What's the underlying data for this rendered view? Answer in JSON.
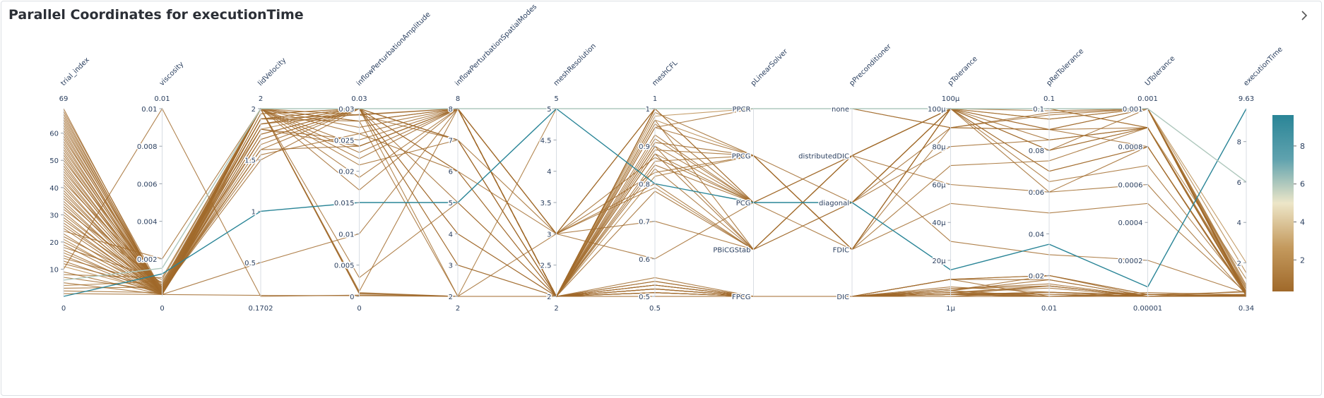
{
  "card": {
    "title": "Parallel Coordinates for executionTime"
  },
  "icons": {
    "expand": "chevron-right-icon"
  },
  "chart_data": {
    "type": "parallel_coordinates",
    "title": "Parallel Coordinates for executionTime",
    "color_by": "executionTime",
    "colorscale": [
      "#a0692a",
      "#c49a5e",
      "#ede6c8",
      "#5fa2ae",
      "#2a8597"
    ],
    "colorbar": {
      "range": [
        0.34,
        9.63
      ],
      "ticks": [
        2,
        4,
        6,
        8
      ]
    },
    "dimensions": [
      {
        "name": "trial_index",
        "type": "numeric",
        "range": [
          0,
          69
        ],
        "top_label": "69",
        "bottom_label": "0",
        "ticks": [
          10,
          20,
          30,
          40,
          50,
          60
        ],
        "tick_labels": [
          "10",
          "20",
          "30",
          "40",
          "50",
          "60"
        ]
      },
      {
        "name": "viscosity",
        "type": "numeric",
        "range": [
          0,
          0.01
        ],
        "top_label": "0.01",
        "bottom_label": "0",
        "ticks": [
          0.002,
          0.004,
          0.006,
          0.008,
          0.01
        ],
        "tick_labels": [
          "0.002",
          "0.004",
          "0.006",
          "0.008",
          "0.01"
        ]
      },
      {
        "name": "lidVelocity",
        "type": "numeric",
        "range": [
          0.1702,
          2
        ],
        "top_label": "2",
        "bottom_label": "0.1702",
        "ticks": [
          0.5,
          1,
          1.5,
          2
        ],
        "tick_labels": [
          "0.5",
          "1",
          "1.5",
          "2"
        ]
      },
      {
        "name": "inflowPerturbationAmplitude",
        "type": "numeric",
        "range": [
          0,
          0.03
        ],
        "top_label": "0.03",
        "bottom_label": "0",
        "ticks": [
          0,
          0.005,
          0.01,
          0.015,
          0.02,
          0.025,
          0.03
        ],
        "tick_labels": [
          "0",
          "0.005",
          "0.01",
          "0.015",
          "0.02",
          "0.025",
          "0.03"
        ]
      },
      {
        "name": "inflowPerturbationSpatialModes",
        "type": "numeric",
        "range": [
          2,
          8
        ],
        "top_label": "8",
        "bottom_label": "2",
        "ticks": [
          2,
          3,
          4,
          5,
          6,
          7,
          8
        ],
        "tick_labels": [
          "2",
          "3",
          "4",
          "5",
          "6",
          "7",
          "8"
        ]
      },
      {
        "name": "meshResolution",
        "type": "numeric",
        "range": [
          2,
          5
        ],
        "top_label": "5",
        "bottom_label": "2",
        "ticks": [
          2,
          2.5,
          3,
          3.5,
          4,
          4.5,
          5
        ],
        "tick_labels": [
          "2",
          "2.5",
          "3",
          "3.5",
          "4",
          "4.5",
          "5"
        ]
      },
      {
        "name": "meshCFL",
        "type": "numeric",
        "range": [
          0.5,
          1
        ],
        "top_label": "1",
        "bottom_label": "0.5",
        "ticks": [
          0.5,
          0.6,
          0.7,
          0.8,
          0.9,
          1
        ],
        "tick_labels": [
          "0.5",
          "0.6",
          "0.7",
          "0.8",
          "0.9",
          "1"
        ]
      },
      {
        "name": "pLinearSolver",
        "type": "categorical",
        "categories": [
          "FPCG",
          "PBiCGStab",
          "PCG",
          "PPCG",
          "PPCR"
        ]
      },
      {
        "name": "pPreconditioner",
        "type": "categorical",
        "categories": [
          "DIC",
          "FDIC",
          "diagonal",
          "distributedDIC",
          "none"
        ]
      },
      {
        "name": "pTolerance",
        "type": "numeric",
        "range": [
          1e-06,
          0.0001
        ],
        "top_label": "100μ",
        "bottom_label": "1μ",
        "ticks": [
          2e-05,
          4e-05,
          6e-05,
          8e-05,
          0.0001
        ],
        "tick_labels": [
          "20μ",
          "40μ",
          "60μ",
          "80μ",
          "100μ"
        ]
      },
      {
        "name": "pRelTolerance",
        "type": "numeric",
        "range": [
          0.01,
          0.1
        ],
        "top_label": "0.1",
        "bottom_label": "0.01",
        "ticks": [
          0.02,
          0.04,
          0.06,
          0.08,
          0.1
        ],
        "tick_labels": [
          "0.02",
          "0.04",
          "0.06",
          "0.08",
          "0.1"
        ]
      },
      {
        "name": "UTolerance",
        "type": "numeric",
        "range": [
          1e-05,
          0.001
        ],
        "top_label": "0.001",
        "bottom_label": "0.00001",
        "ticks": [
          0.0002,
          0.0004,
          0.0006,
          0.0008,
          0.001
        ],
        "tick_labels": [
          "0.0002",
          "0.0004",
          "0.0006",
          "0.0008",
          "0.001"
        ]
      },
      {
        "name": "executionTime",
        "type": "numeric",
        "range": [
          0.34,
          9.63
        ],
        "top_label": "9.63",
        "bottom_label": "0.34",
        "ticks": [
          2,
          4,
          6,
          8
        ],
        "tick_labels": [
          "2",
          "4",
          "6",
          "8"
        ]
      }
    ],
    "highlighted_trials": [
      [
        0,
        0.0012,
        1,
        0.015,
        5,
        5,
        0.8,
        "PCG",
        "diagonal",
        1.5e-05,
        0.035,
        6e-05,
        9.63
      ],
      [
        6,
        0.0015,
        2,
        0.03,
        8,
        5,
        1,
        "PPCR",
        "none",
        0.0001,
        0.1,
        0.001,
        6.0
      ]
    ],
    "trials": [
      [
        1,
        0.0001,
        2,
        0.03,
        8,
        2,
        0.51,
        "FPCG",
        "DIC",
        2e-06,
        0.012,
        2e-05,
        0.4
      ],
      [
        2,
        0.0002,
        1.9,
        0.028,
        2,
        2,
        0.95,
        "PPCR",
        "none",
        0.0001,
        0.099,
        0.001,
        0.5
      ],
      [
        3,
        0.0005,
        2,
        0.0008,
        8,
        3,
        1,
        "PCG",
        "distributedDIC",
        6e-05,
        0.06,
        0.0008,
        0.45
      ],
      [
        4,
        0.0008,
        1.8,
        0.03,
        8,
        2,
        0.82,
        "PPCG",
        "FDIC",
        0.0001,
        0.1,
        0.0009,
        1.2
      ],
      [
        5,
        0.0001,
        2,
        0.029,
        7,
        2,
        0.5,
        "FPCG",
        "DIC",
        1e-05,
        0.02,
        1e-05,
        0.6
      ],
      [
        7,
        0.0003,
        1.6,
        0.024,
        8,
        2,
        0.88,
        "PBiCGStab",
        "diagonal",
        9e-05,
        0.09,
        0.001,
        0.35
      ],
      [
        8,
        0.001,
        2,
        0.03,
        2,
        5,
        1,
        "PPCR",
        "none",
        0.0001,
        0.1,
        0.001,
        0.8
      ],
      [
        9,
        0.0001,
        2,
        0.03,
        8,
        2,
        0.5,
        "FPCG",
        "DIC",
        4e-06,
        0.01,
        1e-05,
        0.38
      ],
      [
        10,
        0.01,
        0.17,
        0.0002,
        2,
        3,
        0.6,
        "PCG",
        "distributedDIC",
        3e-05,
        0.03,
        0.0002,
        0.5
      ],
      [
        11,
        0.0002,
        1.95,
        0.03,
        8,
        2,
        0.98,
        "PPCR",
        "none",
        0.0001,
        0.095,
        0.001,
        2.0
      ],
      [
        12,
        0.0004,
        2,
        0.021,
        7,
        2,
        0.55,
        "FPCG",
        "DIC",
        1e-06,
        0.01,
        3e-05,
        0.42
      ],
      [
        13,
        0.0001,
        1.7,
        0.03,
        8,
        2,
        0.91,
        "PPCG",
        "diagonal",
        0.0001,
        0.08,
        0.001,
        0.36
      ],
      [
        14,
        0.0006,
        2,
        0.03,
        3,
        2,
        1,
        "PCG",
        "FDIC",
        5e-05,
        0.05,
        0.0005,
        0.5
      ],
      [
        15,
        0.0001,
        0.5,
        0.01,
        8,
        2,
        0.52,
        "FPCG",
        "DIC",
        3e-06,
        0.011,
        1e-05,
        0.38
      ],
      [
        16,
        0.0002,
        2,
        0.03,
        8,
        3,
        0.79,
        "PBiCGStab",
        "distributedDIC",
        0.0001,
        0.1,
        0.0009,
        0.7
      ],
      [
        17,
        0.0001,
        1.85,
        0.0291,
        8,
        2,
        1,
        "PPCR",
        "none",
        9e-05,
        0.098,
        0.001,
        0.4
      ],
      [
        18,
        0.0009,
        2,
        0.003,
        5,
        2,
        0.5,
        "FPCG",
        "DIC",
        1e-05,
        0.02,
        2e-05,
        0.55
      ],
      [
        19,
        0.0001,
        2,
        0.03,
        8,
        2,
        0.85,
        "PCG",
        "diagonal",
        0.0001,
        0.07,
        0.0008,
        0.37
      ],
      [
        20,
        0.0003,
        1.55,
        0.026,
        6,
        2,
        0.53,
        "FPCG",
        "DIC",
        5e-06,
        0.015,
        1e-05,
        0.45
      ],
      [
        21,
        0.0001,
        2,
        0.03,
        8,
        2,
        0.97,
        "PPCG",
        "FDIC",
        0.0001,
        0.1,
        0.001,
        1.5
      ],
      [
        22,
        0.0005,
        2,
        0.0006,
        2,
        2,
        0.5,
        "FPCG",
        "DIC",
        2e-06,
        0.01,
        1e-05,
        0.39
      ],
      [
        23,
        0.0001,
        1.9,
        0.03,
        8,
        3,
        0.7,
        "PBiCGStab",
        "diagonal",
        8e-05,
        0.085,
        0.0009,
        0.5
      ],
      [
        24,
        0.002,
        2,
        0.019,
        8,
        2,
        1,
        "PPCR",
        "none",
        0.0001,
        0.1,
        0.001,
        0.44
      ],
      [
        25,
        0.0001,
        2,
        0.03,
        4,
        2,
        0.5,
        "FPCG",
        "DIC",
        1e-05,
        0.018,
        1e-05,
        0.36
      ],
      [
        26,
        0.0002,
        1.65,
        0.03,
        8,
        2,
        0.9,
        "PCG",
        "distributedDIC",
        0.0001,
        0.065,
        0.0007,
        0.6
      ],
      [
        27,
        0.0001,
        2,
        0.028,
        8,
        2,
        0.51,
        "FPCG",
        "DIC",
        1e-06,
        0.01,
        2e-05,
        0.37
      ],
      [
        28,
        0.0004,
        2,
        0.03,
        7,
        3,
        0.83,
        "PPCG",
        "FDIC",
        7e-05,
        0.075,
        0.0009,
        0.48
      ],
      [
        29,
        0.0001,
        0.18,
        0.0001,
        2,
        2,
        0.5,
        "FPCG",
        "DIC",
        2e-06,
        0.01,
        1e-05,
        0.35
      ],
      [
        30,
        0.0003,
        2,
        0.03,
        8,
        2,
        1,
        "PPCR",
        "none",
        0.0001,
        0.1,
        0.001,
        0.9
      ],
      [
        31,
        0.0001,
        1.8,
        0.024,
        8,
        2,
        0.54,
        "FPCG",
        "DIC",
        6e-06,
        0.012,
        1e-05,
        0.38
      ],
      [
        32,
        0.0007,
        2,
        0.03,
        3,
        2,
        0.92,
        "PCG",
        "diagonal",
        0.0001,
        0.09,
        0.0008,
        0.5
      ],
      [
        33,
        0.0001,
        2,
        0.017,
        8,
        2,
        0.5,
        "FPCG",
        "DIC",
        3e-06,
        0.015,
        1e-05,
        0.4
      ],
      [
        34,
        0.0002,
        1.75,
        0.03,
        8,
        2,
        0.78,
        "PBiCGStab",
        "distributedDIC",
        0.0001,
        0.1,
        0.001,
        0.37
      ],
      [
        35,
        0.0001,
        2,
        0.03,
        6,
        3,
        1,
        "PPCR",
        "none",
        9e-05,
        0.097,
        0.001,
        0.55
      ],
      [
        36,
        0.0005,
        2,
        0.0004,
        2,
        2,
        0.52,
        "FPCG",
        "DIC",
        1e-06,
        0.01,
        1e-05,
        0.36
      ],
      [
        37,
        0.0001,
        1.9,
        0.03,
        8,
        2,
        0.86,
        "PPCG",
        "FDIC",
        0.0001,
        0.08,
        0.0009,
        0.46
      ],
      [
        38,
        0.0002,
        2,
        0.022,
        8,
        2,
        0.5,
        "FPCG",
        "DIC",
        4e-06,
        0.02,
        2e-05,
        0.38
      ],
      [
        39,
        0.0001,
        2,
        0.03,
        8,
        2,
        0.96,
        "PCG",
        "diagonal",
        0.0001,
        0.06,
        0.0006,
        0.42
      ],
      [
        40,
        0.0003,
        1.5,
        0.03,
        5,
        2,
        0.53,
        "FPCG",
        "DIC",
        1e-05,
        0.01,
        1e-05,
        0.36
      ],
      [
        41,
        0.0001,
        2,
        0.03,
        8,
        3,
        0.8,
        "PBiCGStab",
        "distributedDIC",
        0.0001,
        0.1,
        0.001,
        0.7
      ],
      [
        42,
        0.0006,
        2,
        0.026,
        8,
        2,
        1,
        "PPCR",
        "none",
        0.0001,
        0.1,
        0.001,
        0.5
      ],
      [
        43,
        0.0001,
        1.85,
        0.03,
        7,
        2,
        0.51,
        "FPCG",
        "DIC",
        2e-06,
        0.012,
        1e-05,
        0.35
      ],
      [
        44,
        0.0002,
        2,
        0.03,
        8,
        2,
        0.89,
        "PPCG",
        "FDIC",
        9e-05,
        0.09,
        0.0009,
        0.6
      ],
      [
        45,
        0.0001,
        2,
        0.0005,
        2,
        2,
        0.5,
        "FPCG",
        "DIC",
        1e-06,
        0.01,
        1e-05,
        0.37
      ],
      [
        46,
        0.0004,
        1.7,
        0.03,
        8,
        2,
        0.93,
        "PCG",
        "diagonal",
        0.0001,
        0.07,
        0.0008,
        0.45
      ],
      [
        47,
        0.0001,
        2,
        0.023,
        8,
        2,
        0.54,
        "FPCG",
        "DIC",
        5e-06,
        0.016,
        1e-05,
        0.38
      ],
      [
        48,
        0.0002,
        2,
        0.03,
        8,
        3,
        1,
        "PPCR",
        "none",
        0.0001,
        0.1,
        0.001,
        0.4
      ],
      [
        49,
        0.0001,
        1.95,
        0.03,
        4,
        2,
        0.52,
        "FPCG",
        "DIC",
        2e-06,
        0.01,
        2e-05,
        0.36
      ],
      [
        50,
        0.0005,
        2,
        0.03,
        8,
        2,
        0.84,
        "PBiCGStab",
        "distributedDIC",
        0.0001,
        0.1,
        0.001,
        0.5
      ],
      [
        51,
        0.0001,
        2,
        0.027,
        8,
        2,
        0.5,
        "FPCG",
        "DIC",
        3e-06,
        0.014,
        1e-05,
        0.35
      ],
      [
        52,
        0.0002,
        1.6,
        0.03,
        8,
        2,
        0.99,
        "PPCG",
        "FDIC",
        0.0001,
        0.095,
        0.001,
        0.42
      ],
      [
        53,
        0.0001,
        2,
        0.03,
        7,
        2,
        0.51,
        "FPCG",
        "DIC",
        1e-06,
        0.01,
        1e-05,
        0.37
      ],
      [
        54,
        0.0003,
        2,
        0.03,
        8,
        3,
        0.87,
        "PCG",
        "diagonal",
        0.0001,
        0.08,
        0.0009,
        0.48
      ],
      [
        55,
        0.0001,
        1.8,
        0.025,
        8,
        2,
        0.53,
        "FPCG",
        "DIC",
        4e-06,
        0.018,
        1e-05,
        0.36
      ],
      [
        56,
        0.0002,
        2,
        0.03,
        8,
        2,
        1,
        "PPCR",
        "none",
        0.0001,
        0.1,
        0.001,
        0.55
      ],
      [
        57,
        0.0001,
        2,
        0.03,
        6,
        2,
        0.5,
        "FPCG",
        "DIC",
        2e-06,
        0.01,
        1e-05,
        0.35
      ],
      [
        58,
        0.0004,
        1.9,
        0.03,
        8,
        2,
        0.9,
        "PBiCGStab",
        "distributedDIC",
        0.0001,
        0.1,
        0.001,
        0.44
      ],
      [
        59,
        0.0001,
        2,
        0.028,
        8,
        2,
        0.52,
        "FPCG",
        "DIC",
        1e-06,
        0.012,
        1e-05,
        0.38
      ],
      [
        60,
        0.0002,
        2,
        0.03,
        8,
        2,
        0.95,
        "PPCG",
        "FDIC",
        0.0001,
        0.09,
        0.001,
        0.4
      ],
      [
        61,
        0.0001,
        1.75,
        0.03,
        8,
        2,
        0.5,
        "FPCG",
        "DIC",
        3e-06,
        0.01,
        1e-05,
        0.36
      ],
      [
        62,
        0.0003,
        2,
        0.03,
        8,
        3,
        1,
        "PPCR",
        "none",
        0.0001,
        0.1,
        0.001,
        0.5
      ],
      [
        63,
        0.0001,
        2,
        0.024,
        8,
        2,
        0.51,
        "FPCG",
        "DIC",
        2e-06,
        0.015,
        1e-05,
        0.37
      ],
      [
        64,
        0.0002,
        1.85,
        0.03,
        8,
        2,
        0.88,
        "PCG",
        "diagonal",
        0.0001,
        0.085,
        0.0009,
        0.42
      ],
      [
        65,
        0.0001,
        2,
        0.03,
        8,
        2,
        0.53,
        "FPCG",
        "DIC",
        1e-06,
        0.01,
        1e-05,
        0.35
      ],
      [
        66,
        0.0002,
        2,
        0.03,
        8,
        2,
        0.97,
        "PBiCGStab",
        "distributedDIC",
        0.0001,
        0.1,
        0.001,
        0.46
      ],
      [
        67,
        0.0001,
        1.9,
        0.029,
        8,
        2,
        0.5,
        "FPCG",
        "DIC",
        2e-06,
        0.011,
        1e-05,
        0.36
      ],
      [
        68,
        0.0003,
        2,
        0.03,
        8,
        2,
        1,
        "PPCR",
        "none",
        0.0001,
        0.1,
        0.001,
        0.4
      ],
      [
        69,
        0.0001,
        2,
        0.03,
        8,
        2,
        0.52,
        "FPCG",
        "DIC",
        1e-06,
        0.01,
        1e-05,
        0.38
      ]
    ]
  }
}
